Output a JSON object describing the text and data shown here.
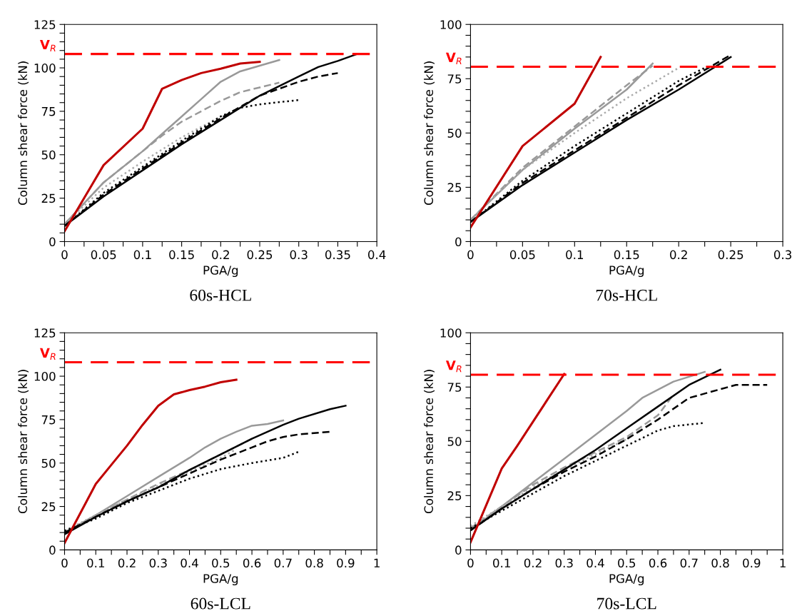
{
  "chart_data": [
    {
      "type": "line",
      "title": "60s-HCL",
      "xlabel": "PGA/g",
      "ylabel": "Column shear force (kN)",
      "grid": false,
      "legend": false,
      "xlim": [
        0,
        0.4
      ],
      "ylim": [
        0,
        125
      ],
      "xticks": [
        0,
        {
          "value": 0.025,
          "label": null
        },
        0.05,
        {
          "value": 0.075,
          "label": null
        },
        0.1,
        {
          "value": 0.125,
          "label": null
        },
        0.15,
        {
          "value": 0.175,
          "label": null
        },
        0.2,
        {
          "value": 0.225,
          "label": null
        },
        0.25,
        {
          "value": 0.275,
          "label": null
        },
        0.3,
        {
          "value": 0.325,
          "label": null
        },
        0.35,
        {
          "value": 0.375,
          "label": null
        },
        0.4
      ],
      "yticks": [
        0,
        {
          "value": 5,
          "label": null
        },
        {
          "value": 10,
          "label": null
        },
        {
          "value": 15,
          "label": null
        },
        {
          "value": 20,
          "label": null
        },
        25,
        {
          "value": 30,
          "label": null
        },
        {
          "value": 35,
          "label": null
        },
        {
          "value": 40,
          "label": null
        },
        {
          "value": 45,
          "label": null
        },
        50,
        {
          "value": 55,
          "label": null
        },
        {
          "value": 60,
          "label": null
        },
        {
          "value": 65,
          "label": null
        },
        {
          "value": 70,
          "label": null
        },
        75,
        {
          "value": 80,
          "label": null
        },
        {
          "value": 85,
          "label": null
        },
        {
          "value": 90,
          "label": null
        },
        {
          "value": 95,
          "label": null
        },
        100,
        {
          "value": 105,
          "label": null
        },
        {
          "value": 110,
          "label": null
        },
        {
          "value": 115,
          "label": null
        },
        {
          "value": 120,
          "label": null
        },
        125
      ],
      "ref_lines": [
        {
          "axis": "y",
          "value": 108,
          "label": "V$_{R}$",
          "color": "#ff0000",
          "line_style": "dashed"
        }
      ],
      "series": [
        {
          "color": "#999999",
          "line_style": "solid",
          "x": [
            0,
            0.05,
            0.1,
            0.125,
            0.15,
            0.175,
            0.2,
            0.225,
            0.275
          ],
          "values": [
            10,
            34,
            52,
            62,
            72,
            82,
            92,
            98,
            104.5
          ]
        },
        {
          "color": "#999999",
          "line_style": "dashed",
          "x": [
            0,
            0.05,
            0.1,
            0.125,
            0.15,
            0.2,
            0.225,
            0.275
          ],
          "values": [
            10,
            34,
            52,
            61,
            69,
            81,
            86,
            91.5
          ]
        },
        {
          "color": "#aaaaaa",
          "line_style": "dotted",
          "x": [
            0,
            0.05,
            0.1,
            0.15,
            0.2,
            0.23
          ],
          "values": [
            10,
            31,
            46,
            60,
            72,
            78
          ]
        },
        {
          "color": "#000000",
          "line_style": "solid",
          "x": [
            0,
            0.05,
            0.1,
            0.15,
            0.2,
            0.25,
            0.3,
            0.325,
            0.35,
            0.375
          ],
          "values": [
            9,
            26,
            41,
            56,
            70,
            84,
            95,
            100.5,
            104,
            108
          ]
        },
        {
          "color": "#000000",
          "line_style": "dashed",
          "x": [
            0,
            0.05,
            0.1,
            0.15,
            0.2,
            0.25,
            0.3,
            0.325,
            0.35
          ],
          "values": [
            9,
            27,
            42,
            57,
            71,
            84,
            92,
            95,
            97
          ]
        },
        {
          "color": "#000000",
          "line_style": "dotted",
          "x": [
            0,
            0.05,
            0.1,
            0.15,
            0.2,
            0.225,
            0.25,
            0.3
          ],
          "values": [
            9,
            28,
            43,
            58,
            72,
            77,
            79,
            81.5
          ]
        },
        {
          "color": "#c00000",
          "line_style": "solid",
          "x": [
            0,
            0.05,
            0.1,
            0.125,
            0.15,
            0.175,
            0.2,
            0.225,
            0.25
          ],
          "values": [
            6,
            44,
            65,
            88,
            93,
            97,
            99.5,
            102.5,
            103.5
          ]
        }
      ]
    },
    {
      "type": "line",
      "title": "70s-HCL",
      "xlabel": "PGA/g",
      "ylabel": "Column shear force (kN)",
      "grid": false,
      "legend": false,
      "xlim": [
        0,
        0.3
      ],
      "ylim": [
        0,
        100
      ],
      "xticks": [
        0,
        {
          "value": 0.025,
          "label": null
        },
        0.05,
        {
          "value": 0.075,
          "label": null
        },
        0.1,
        {
          "value": 0.125,
          "label": null
        },
        0.15,
        {
          "value": 0.175,
          "label": null
        },
        0.2,
        {
          "value": 0.225,
          "label": null
        },
        0.25,
        {
          "value": 0.275,
          "label": null
        },
        0.3
      ],
      "yticks": [
        0,
        {
          "value": 5,
          "label": null
        },
        {
          "value": 10,
          "label": null
        },
        {
          "value": 15,
          "label": null
        },
        {
          "value": 20,
          "label": null
        },
        25,
        {
          "value": 30,
          "label": null
        },
        {
          "value": 35,
          "label": null
        },
        {
          "value": 40,
          "label": null
        },
        {
          "value": 45,
          "label": null
        },
        50,
        {
          "value": 55,
          "label": null
        },
        {
          "value": 60,
          "label": null
        },
        {
          "value": 65,
          "label": null
        },
        {
          "value": 70,
          "label": null
        },
        75,
        {
          "value": 80,
          "label": null
        },
        {
          "value": 85,
          "label": null
        },
        {
          "value": 90,
          "label": null
        },
        {
          "value": 95,
          "label": null
        },
        100
      ],
      "ref_lines": [
        {
          "axis": "y",
          "value": 80.5,
          "label": "V$_{R}$",
          "color": "#ff0000",
          "line_style": "dashed"
        }
      ],
      "series": [
        {
          "color": "#999999",
          "line_style": "solid",
          "x": [
            0,
            0.05,
            0.1,
            0.15,
            0.175
          ],
          "values": [
            10,
            33,
            52,
            70,
            82
          ]
        },
        {
          "color": "#999999",
          "line_style": "dashed",
          "x": [
            0,
            0.05,
            0.1,
            0.15,
            0.175
          ],
          "values": [
            10,
            34,
            53,
            72,
            81
          ]
        },
        {
          "color": "#aaaaaa",
          "line_style": "dotted",
          "x": [
            0,
            0.05,
            0.1,
            0.15,
            0.2
          ],
          "values": [
            10,
            33,
            50,
            66,
            80
          ]
        },
        {
          "color": "#000000",
          "line_style": "solid",
          "x": [
            0,
            0.05,
            0.1,
            0.15,
            0.2,
            0.25
          ],
          "values": [
            9,
            26,
            41,
            56,
            70,
            85
          ]
        },
        {
          "color": "#000000",
          "line_style": "dashed",
          "x": [
            0,
            0.05,
            0.1,
            0.15,
            0.2,
            0.25
          ],
          "values": [
            9,
            27,
            42,
            57,
            72,
            86
          ]
        },
        {
          "color": "#000000",
          "line_style": "dotted",
          "x": [
            0,
            0.05,
            0.1,
            0.15,
            0.2,
            0.225
          ],
          "values": [
            9,
            28,
            44,
            59,
            74,
            80
          ]
        },
        {
          "color": "#c00000",
          "line_style": "solid",
          "x": [
            0,
            0.05,
            0.1,
            0.125
          ],
          "values": [
            6.5,
            44,
            63.5,
            85
          ]
        }
      ]
    },
    {
      "type": "line",
      "title": "60s-LCL",
      "xlabel": "PGA/g",
      "ylabel": "Column shear force (kN)",
      "grid": false,
      "legend": false,
      "xlim": [
        0,
        1
      ],
      "ylim": [
        0,
        125
      ],
      "xticks": [
        0,
        {
          "value": 0.05,
          "label": null
        },
        0.1,
        {
          "value": 0.15,
          "label": null
        },
        0.2,
        {
          "value": 0.25,
          "label": null
        },
        0.3,
        {
          "value": 0.35,
          "label": null
        },
        0.4,
        {
          "value": 0.45,
          "label": null
        },
        0.5,
        {
          "value": 0.55,
          "label": null
        },
        0.6,
        {
          "value": 0.65,
          "label": null
        },
        0.7,
        {
          "value": 0.75,
          "label": null
        },
        0.8,
        {
          "value": 0.85,
          "label": null
        },
        0.9,
        {
          "value": 0.95,
          "label": null
        },
        1
      ],
      "yticks": [
        0,
        {
          "value": 5,
          "label": null
        },
        {
          "value": 10,
          "label": null
        },
        {
          "value": 15,
          "label": null
        },
        {
          "value": 20,
          "label": null
        },
        25,
        {
          "value": 30,
          "label": null
        },
        {
          "value": 35,
          "label": null
        },
        {
          "value": 40,
          "label": null
        },
        {
          "value": 45,
          "label": null
        },
        50,
        {
          "value": 55,
          "label": null
        },
        {
          "value": 60,
          "label": null
        },
        {
          "value": 65,
          "label": null
        },
        {
          "value": 70,
          "label": null
        },
        75,
        {
          "value": 80,
          "label": null
        },
        {
          "value": 85,
          "label": null
        },
        {
          "value": 90,
          "label": null
        },
        {
          "value": 95,
          "label": null
        },
        100,
        {
          "value": 105,
          "label": null
        },
        {
          "value": 110,
          "label": null
        },
        {
          "value": 115,
          "label": null
        },
        {
          "value": 120,
          "label": null
        },
        125
      ],
      "ref_lines": [
        {
          "axis": "y",
          "value": 108,
          "label": "V$_{R}$",
          "color": "#ff0000",
          "line_style": "dashed"
        }
      ],
      "series": [
        {
          "color": "#999999",
          "line_style": "solid",
          "x": [
            0,
            0.1,
            0.2,
            0.3,
            0.4,
            0.45,
            0.5,
            0.55,
            0.6,
            0.65,
            0.7
          ],
          "values": [
            10,
            20,
            31,
            42,
            53,
            59,
            64,
            68,
            71.5,
            72.5,
            74.5
          ]
        },
        {
          "color": "#999999",
          "line_style": "dashed",
          "x": [
            0,
            0.1,
            0.2,
            0.3,
            0.4,
            0.5,
            0.6
          ],
          "values": [
            10,
            20,
            29,
            38,
            46,
            55,
            64
          ]
        },
        {
          "color": "#aaaaaa",
          "line_style": "dotted",
          "x": [
            0,
            0.1,
            0.2,
            0.3,
            0.4,
            0.5,
            0.55
          ],
          "values": [
            11,
            20,
            29,
            37,
            45,
            53,
            58
          ]
        },
        {
          "color": "#000000",
          "line_style": "solid",
          "x": [
            0,
            0.1,
            0.2,
            0.3,
            0.4,
            0.5,
            0.6,
            0.7,
            0.75,
            0.85,
            0.9
          ],
          "values": [
            9,
            19,
            28,
            36,
            46,
            55,
            64,
            72,
            75.5,
            81,
            83
          ]
        },
        {
          "color": "#000000",
          "line_style": "dashed",
          "x": [
            0,
            0.1,
            0.2,
            0.3,
            0.4,
            0.5,
            0.6,
            0.65,
            0.7,
            0.75,
            0.85
          ],
          "values": [
            10,
            19,
            28,
            36,
            44,
            52,
            59,
            62.5,
            65,
            66.5,
            68
          ]
        },
        {
          "color": "#000000",
          "line_style": "dotted",
          "x": [
            0,
            0.1,
            0.2,
            0.3,
            0.4,
            0.5,
            0.6,
            0.7,
            0.75
          ],
          "values": [
            11,
            18,
            27,
            34,
            41,
            46.5,
            50,
            53,
            56.5
          ]
        },
        {
          "color": "#c00000",
          "line_style": "solid",
          "x": [
            0,
            0.1,
            0.15,
            0.2,
            0.25,
            0.3,
            0.35,
            0.4,
            0.45,
            0.5,
            0.55
          ],
          "values": [
            4,
            38,
            49,
            60,
            72,
            83,
            89.5,
            92,
            94,
            96.5,
            98
          ]
        }
      ]
    },
    {
      "type": "line",
      "title": "70s-LCL",
      "xlabel": "PGA/g",
      "ylabel": "Column shear force (kN)",
      "grid": false,
      "legend": false,
      "xlim": [
        0,
        1
      ],
      "ylim": [
        0,
        100
      ],
      "xticks": [
        0,
        {
          "value": 0.05,
          "label": null
        },
        0.1,
        {
          "value": 0.15,
          "label": null
        },
        0.2,
        {
          "value": 0.25,
          "label": null
        },
        0.3,
        {
          "value": 0.35,
          "label": null
        },
        0.4,
        {
          "value": 0.45,
          "label": null
        },
        0.5,
        {
          "value": 0.55,
          "label": null
        },
        0.6,
        {
          "value": 0.65,
          "label": null
        },
        0.7,
        {
          "value": 0.75,
          "label": null
        },
        0.8,
        {
          "value": 0.85,
          "label": null
        },
        0.9,
        {
          "value": 0.95,
          "label": null
        },
        1
      ],
      "yticks": [
        0,
        {
          "value": 5,
          "label": null
        },
        {
          "value": 10,
          "label": null
        },
        {
          "value": 15,
          "label": null
        },
        {
          "value": 20,
          "label": null
        },
        25,
        {
          "value": 30,
          "label": null
        },
        {
          "value": 35,
          "label": null
        },
        {
          "value": 40,
          "label": null
        },
        {
          "value": 45,
          "label": null
        },
        50,
        {
          "value": 55,
          "label": null
        },
        {
          "value": 60,
          "label": null
        },
        {
          "value": 65,
          "label": null
        },
        {
          "value": 70,
          "label": null
        },
        75,
        {
          "value": 80,
          "label": null
        },
        {
          "value": 85,
          "label": null
        },
        {
          "value": 90,
          "label": null
        },
        {
          "value": 95,
          "label": null
        },
        100
      ],
      "ref_lines": [
        {
          "axis": "y",
          "value": 80.7,
          "label": "V$_{R}$",
          "color": "#ff0000",
          "line_style": "dashed"
        }
      ],
      "series": [
        {
          "color": "#999999",
          "line_style": "solid",
          "x": [
            0,
            0.1,
            0.2,
            0.3,
            0.4,
            0.5,
            0.55,
            0.65,
            0.75
          ],
          "values": [
            9,
            20,
            31,
            42,
            53,
            64,
            70,
            77.5,
            82
          ]
        },
        {
          "color": "#999999",
          "line_style": "dashed",
          "x": [
            0,
            0.1,
            0.2,
            0.3,
            0.4,
            0.5,
            0.6,
            0.65
          ],
          "values": [
            10,
            20,
            30,
            38,
            45,
            52,
            62,
            71.5
          ]
        },
        {
          "color": "#aaaaaa",
          "line_style": "dotted",
          "x": [
            0,
            0.1,
            0.2,
            0.3,
            0.4,
            0.5
          ],
          "values": [
            11,
            20,
            29,
            37,
            44,
            51
          ]
        },
        {
          "color": "#000000",
          "line_style": "solid",
          "x": [
            0,
            0.1,
            0.2,
            0.3,
            0.4,
            0.5,
            0.6,
            0.7,
            0.8
          ],
          "values": [
            9,
            19,
            28,
            37,
            46,
            56,
            66,
            76,
            83
          ]
        },
        {
          "color": "#000000",
          "line_style": "dashed",
          "x": [
            0,
            0.1,
            0.2,
            0.3,
            0.4,
            0.5,
            0.6,
            0.7,
            0.8,
            0.85,
            0.95
          ],
          "values": [
            9,
            19,
            28,
            36,
            43,
            51,
            60,
            70,
            74,
            76,
            76
          ]
        },
        {
          "color": "#000000",
          "line_style": "dotted",
          "x": [
            0,
            0.1,
            0.2,
            0.3,
            0.4,
            0.5,
            0.6,
            0.65,
            0.75
          ],
          "values": [
            10,
            18,
            26,
            34,
            41,
            48,
            55,
            57,
            58.5
          ]
        },
        {
          "color": "#c00000",
          "line_style": "solid",
          "x": [
            0,
            0.1,
            0.15,
            0.2,
            0.25,
            0.3
          ],
          "values": [
            3.5,
            37.5,
            48,
            59,
            70,
            81
          ]
        }
      ]
    }
  ]
}
